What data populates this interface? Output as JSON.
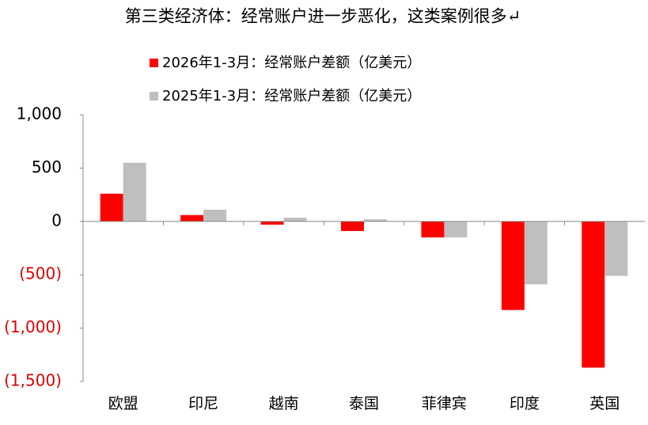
{
  "chart_data": {
    "type": "bar",
    "title": "第三类经济体：经常账户进一步恶化，这类案例很多↵",
    "categories": [
      "欧盟",
      "印尼",
      "越南",
      "泰国",
      "菲律宾",
      "印度",
      "英国"
    ],
    "series": [
      {
        "name": "2026年1-3月：经常账户差额（亿美元）",
        "color": "#ff0000",
        "values": [
          260,
          60,
          -30,
          -90,
          -150,
          -830,
          -1370
        ]
      },
      {
        "name": "2025年1-3月：经常账户差额（亿美元）",
        "color": "#bfbfbf",
        "values": [
          550,
          110,
          35,
          20,
          -150,
          -590,
          -510
        ]
      }
    ],
    "ylim": [
      -1500,
      1000
    ],
    "yticks": [
      {
        "value": 1000,
        "label": "1,000"
      },
      500,
      0,
      {
        "value": -500,
        "label": "(500)"
      },
      {
        "value": -1000,
        "label": "(1,000)"
      },
      {
        "value": -1500,
        "label": "(1,500)"
      }
    ],
    "negative_tick_color": "#e00000",
    "legend": "top"
  }
}
